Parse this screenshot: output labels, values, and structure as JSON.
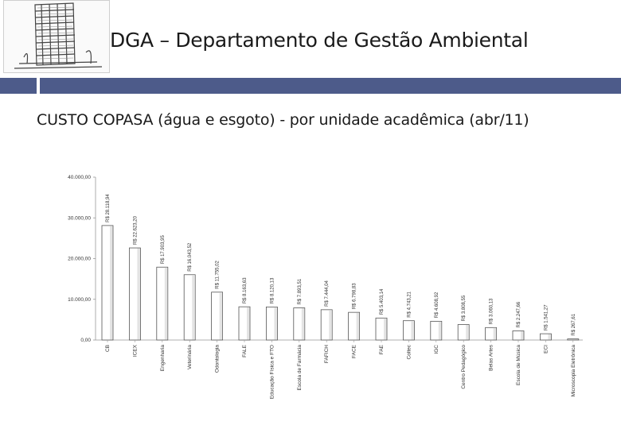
{
  "header": {
    "title": "DGA – Departamento de Gestão Ambiental",
    "logo_icon": "building-logo-icon"
  },
  "subtitle": "CUSTO COPASA (água e esgoto) - por unidade acadêmica (abr/11)",
  "colors": {
    "accent_bar": "#4d5b8a",
    "bar_fill": "#ffffff",
    "bar_stroke": "#555555"
  },
  "chart_data": {
    "type": "bar",
    "title": "CUSTO COPASA (água e esgoto) - por unidade acadêmica (abr/11)",
    "xlabel": "",
    "ylabel": "",
    "ylim": [
      0,
      40000
    ],
    "yticks": [
      "0,00",
      "10.000,00",
      "20.000,00",
      "30.000,00",
      "40.000,00"
    ],
    "grid": false,
    "legend": "none",
    "categories": [
      "CB",
      "ICEX",
      "Engenharia",
      "Veterinária",
      "Odontologia",
      "FALE",
      "Educação Física e FTO",
      "Escola de Farmácia",
      "FAFICH",
      "FACE",
      "FAE",
      "Coltec",
      "IGC",
      "Centro Pedagógico",
      "Belas Artes",
      "Escola de Música",
      "ECI",
      "Microscopia Eletrônica"
    ],
    "values": [
      28118.94,
      22623.2,
      17903.95,
      16043.52,
      11755.02,
      8163.63,
      8120.13,
      7893.51,
      7444.04,
      6798.83,
      5403.14,
      4743.21,
      4608.92,
      3808.55,
      3060.13,
      2247.66,
      1541.27,
      267.61
    ],
    "data_labels": [
      "R$ 28.118,94",
      "R$ 22.623,20",
      "R$ 17.903,95",
      "R$ 16.043,52",
      "R$ 11.755,02",
      "R$ 8.163,63",
      "R$ 8.120,13",
      "R$ 7.893,51",
      "R$ 7.444,04",
      "R$ 6.798,83",
      "R$ 5.403,14",
      "R$ 4.743,21",
      "R$ 4.608,92",
      "R$ 3.808,55",
      "R$ 3.060,13",
      "R$ 2.247,66",
      "R$ 1.541,27",
      "R$ 267,61"
    ]
  }
}
